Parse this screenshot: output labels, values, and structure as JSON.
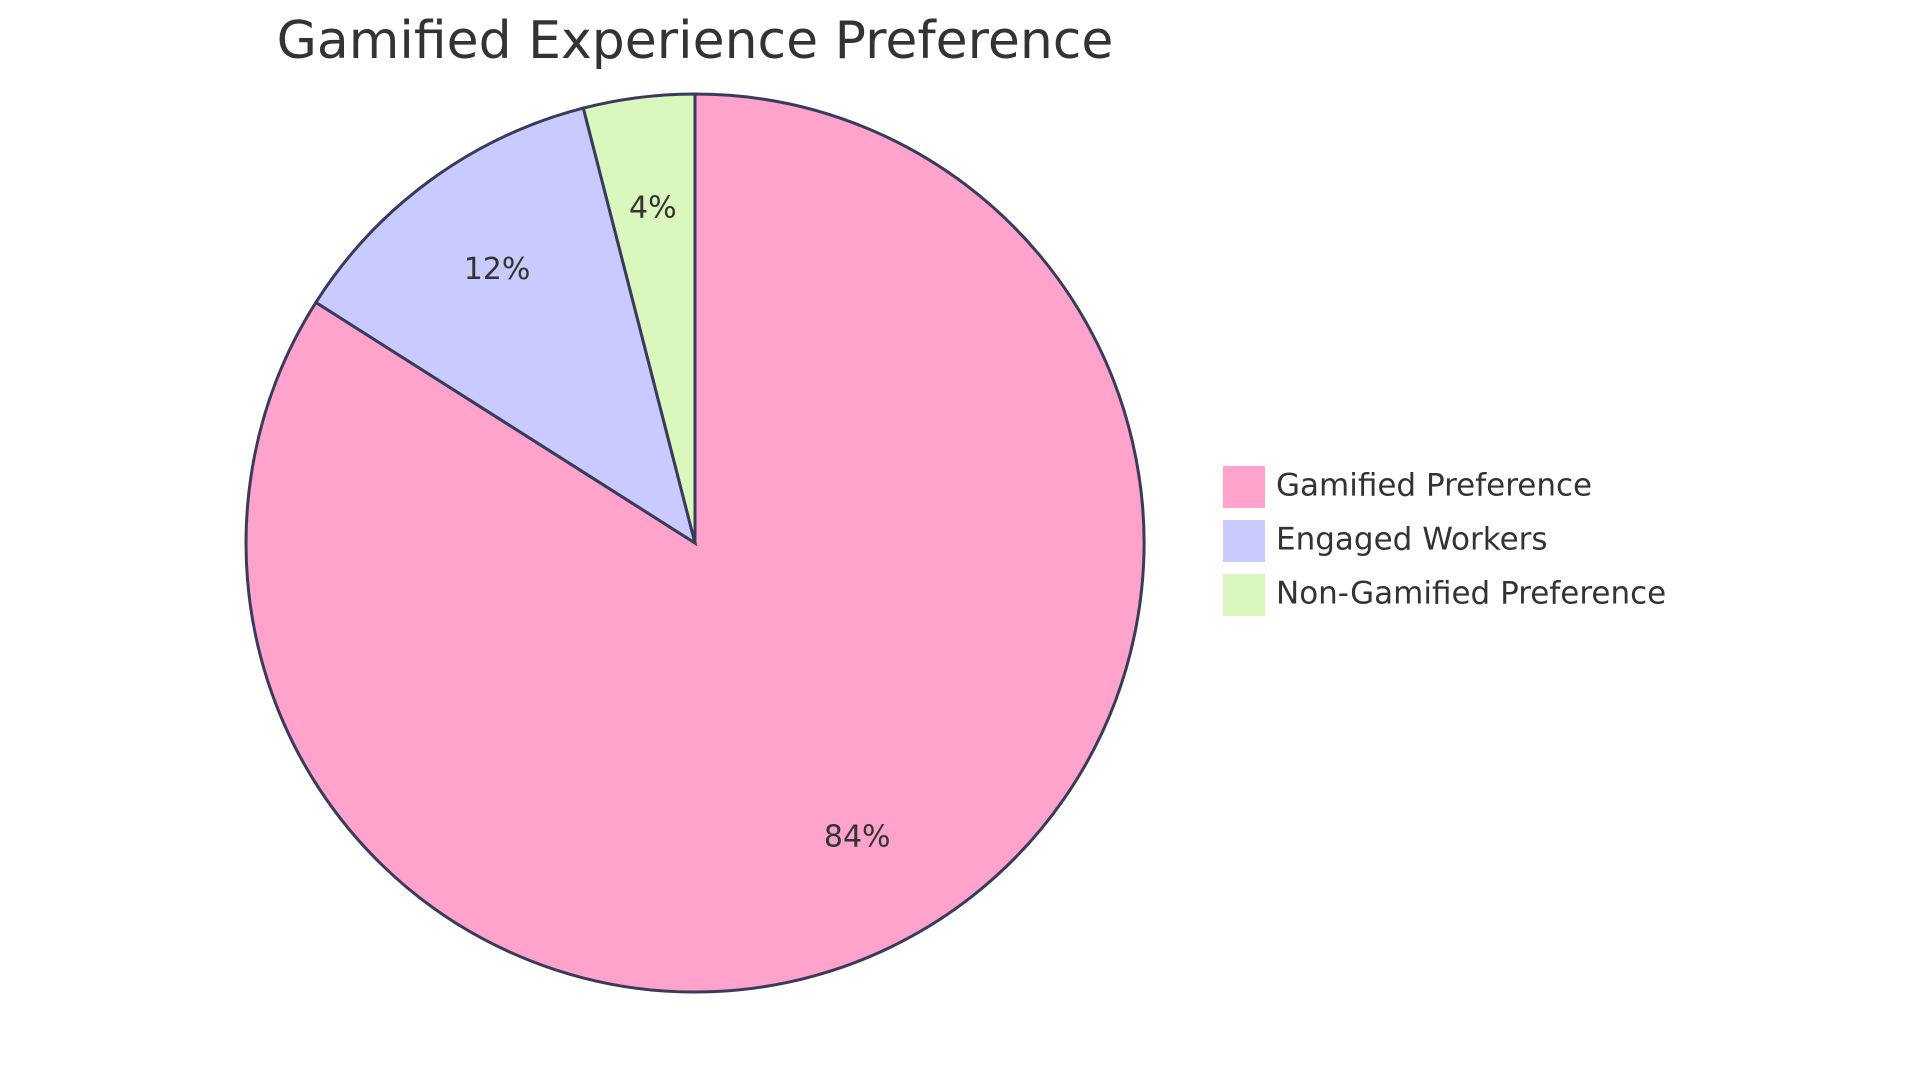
{
  "chart_data": {
    "type": "pie",
    "title": "Gamified Experience Preference",
    "start_angle": "12 o'clock",
    "direction": "clockwise",
    "legend_position": "right",
    "slices": [
      {
        "name": "Gamified Preference",
        "value": 84,
        "label": "84%",
        "color": "#FFA3CC"
      },
      {
        "name": "Engaged Workers",
        "value": 12,
        "label": "12%",
        "color": "#C9CBFF"
      },
      {
        "name": "Non-Gamified Preference",
        "value": 4,
        "label": "4%",
        "color": "#DAF8BE"
      }
    ],
    "border_color": "#3A3A5A"
  }
}
